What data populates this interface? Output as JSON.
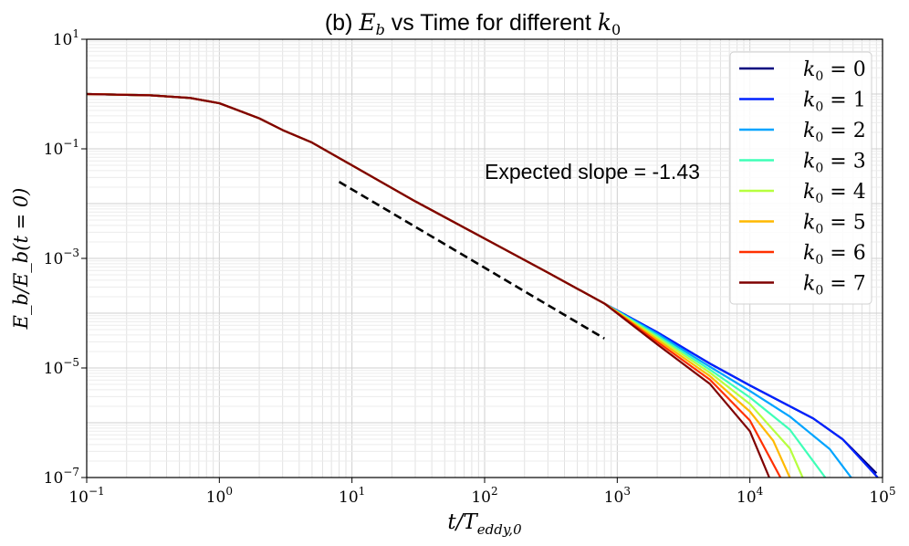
{
  "chart_data": {
    "type": "line",
    "title_prefix": "(b) ",
    "title_var": "E",
    "title_var_sub": "b",
    "title_mid": " vs Time for different ",
    "title_k": "k",
    "title_k_sub": "0",
    "xlabel": "t/T",
    "xlabel_sub": "eddy,0",
    "ylabel": "E_b/E_b(t = 0)",
    "xscale": "log",
    "yscale": "log",
    "xlim": [
      0.1,
      100000
    ],
    "ylim": [
      1e-07,
      10
    ],
    "x_tick_exponents": [
      -1,
      0,
      1,
      2,
      3,
      4,
      5
    ],
    "y_tick_exponents": [
      -7,
      -5,
      -3,
      -1,
      1
    ],
    "grid": true,
    "legend_position": "top-right",
    "legend_k": "k",
    "legend_k_sub": "0",
    "legend_eq": " = ",
    "annotation": {
      "text": "Expected slope = -1.43",
      "slope": -1.43,
      "x_start": 8,
      "x_end": 800,
      "y_start": 0.025
    },
    "base_curve": [
      [
        0.1,
        1.0
      ],
      [
        0.3,
        0.95
      ],
      [
        0.6,
        0.85
      ],
      [
        1,
        0.68
      ],
      [
        2,
        0.36
      ],
      [
        3,
        0.22
      ],
      [
        5,
        0.13
      ],
      [
        10,
        0.05
      ],
      [
        30,
        0.011
      ],
      [
        100,
        0.0023
      ],
      [
        300,
        0.00055
      ],
      [
        800,
        0.00015
      ]
    ],
    "series": [
      {
        "name": "0",
        "color": "#00007f",
        "tail": [
          [
            800,
            0.00015
          ],
          [
            2000,
            4.5e-05
          ],
          [
            5000,
            1.2e-05
          ],
          [
            10000,
            4.8e-06
          ],
          [
            30000,
            1.2e-06
          ],
          [
            50000,
            5e-07
          ],
          [
            90000,
            1.2e-07
          ]
        ]
      },
      {
        "name": "1",
        "color": "#0022ff",
        "tail": [
          [
            800,
            0.00015
          ],
          [
            2000,
            4.5e-05
          ],
          [
            5000,
            1.2e-05
          ],
          [
            10000,
            4.8e-06
          ],
          [
            30000,
            1.2e-06
          ],
          [
            50000,
            5e-07
          ],
          [
            92000,
            1e-07
          ]
        ]
      },
      {
        "name": "2",
        "color": "#00a4ff",
        "tail": [
          [
            800,
            0.00014
          ],
          [
            2000,
            4.2e-05
          ],
          [
            5000,
            1.05e-05
          ],
          [
            10000,
            3.8e-06
          ],
          [
            20000,
            1.3e-06
          ],
          [
            40000,
            3.3e-07
          ],
          [
            58000,
            1e-07
          ]
        ]
      },
      {
        "name": "3",
        "color": "#3fffb7",
        "tail": [
          [
            800,
            0.00014
          ],
          [
            2000,
            3.9e-05
          ],
          [
            5000,
            9.3e-06
          ],
          [
            10000,
            2.9e-06
          ],
          [
            20000,
            7.5e-07
          ],
          [
            37000,
            1e-07
          ]
        ]
      },
      {
        "name": "4",
        "color": "#b7ff3f",
        "tail": [
          [
            800,
            0.00013
          ],
          [
            2000,
            3.6e-05
          ],
          [
            5000,
            8.2e-06
          ],
          [
            10000,
            2.2e-06
          ],
          [
            20000,
            3.4e-07
          ],
          [
            25000,
            1e-07
          ]
        ]
      },
      {
        "name": "5",
        "color": "#ffb900",
        "tail": [
          [
            800,
            0.00012
          ],
          [
            2000,
            3.3e-05
          ],
          [
            5000,
            7.1e-06
          ],
          [
            10000,
            1.6e-06
          ],
          [
            15000,
            4.7e-07
          ],
          [
            20000,
            1e-07
          ]
        ]
      },
      {
        "name": "6",
        "color": "#ff3000",
        "tail": [
          [
            800,
            0.00011
          ],
          [
            2000,
            3e-05
          ],
          [
            5000,
            6.1e-06
          ],
          [
            10000,
            1.1e-06
          ],
          [
            17000,
            1e-07
          ]
        ]
      },
      {
        "name": "7",
        "color": "#7f0000",
        "tail": [
          [
            800,
            0.0001
          ],
          [
            2000,
            2.7e-05
          ],
          [
            5000,
            5.1e-06
          ],
          [
            10000,
            7e-07
          ],
          [
            14000,
            1e-07
          ]
        ]
      }
    ]
  }
}
